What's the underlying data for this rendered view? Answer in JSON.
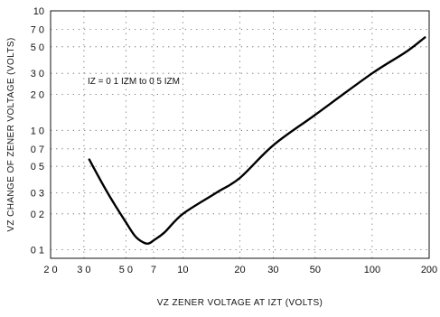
{
  "chart_data": {
    "type": "line",
    "xscale": "log",
    "yscale": "log",
    "xlim": [
      2,
      200
    ],
    "ylim": [
      0.085,
      10
    ],
    "x_ticks": [
      2,
      3,
      5,
      7,
      10,
      20,
      30,
      50,
      100,
      200
    ],
    "x_tick_labels": [
      "2 0",
      "3 0",
      "5 0",
      "7",
      "10",
      "20",
      "30",
      "50",
      "100",
      "200"
    ],
    "y_ticks": [
      0.1,
      0.2,
      0.3,
      0.5,
      0.7,
      1.0,
      2.0,
      3.0,
      5.0,
      7.0,
      10
    ],
    "y_tick_labels": [
      "0 1",
      "0 2",
      "0 3",
      "0 5",
      "0 7",
      "1 0",
      "2 0",
      "3 0",
      "5 0",
      "7 0",
      "10"
    ],
    "xlabel": "VZ ZENER VOLTAGE AT IZT (VOLTS)",
    "ylabel": "VZ CHANGE OF ZENER VOLTAGE (VOLTS)",
    "annotation": "IZ = 0 1 IZM to 0 5 IZM",
    "grid": true,
    "series": [
      {
        "x": [
          3.2,
          4.0,
          5.0,
          5.6,
          6.2,
          6.6,
          7.0,
          8.0,
          10,
          15,
          20,
          30,
          50,
          100,
          150,
          190
        ],
        "y": [
          0.57,
          0.3,
          0.17,
          0.13,
          0.115,
          0.113,
          0.12,
          0.14,
          0.2,
          0.3,
          0.4,
          0.75,
          1.35,
          3.0,
          4.5,
          6.0
        ]
      }
    ]
  }
}
